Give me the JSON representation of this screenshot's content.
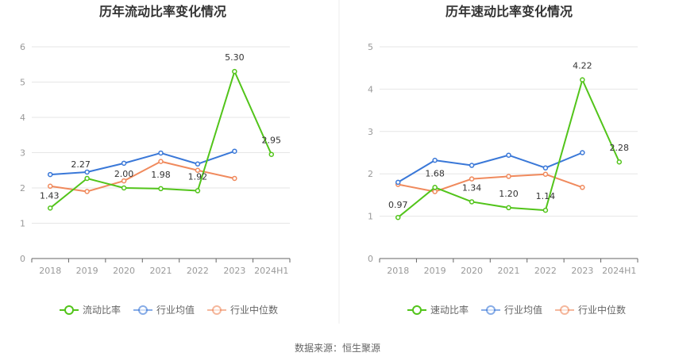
{
  "source": "数据来源：恒生聚源",
  "chart_data": [
    {
      "type": "line",
      "title": "历年流动比率变化情况",
      "categories": [
        "2018",
        "2019",
        "2020",
        "2021",
        "2022",
        "2023",
        "2024H1"
      ],
      "ylim": [
        0,
        6
      ],
      "yticks": [
        0,
        1,
        2,
        3,
        4,
        5,
        6
      ],
      "grid": true,
      "legend": "bottom",
      "series": [
        {
          "name": "流动比率",
          "color": "#52c41a",
          "values": [
            1.43,
            2.27,
            2.0,
            1.98,
            1.92,
            5.3,
            2.95
          ],
          "labels": [
            "1.43",
            "2.27",
            "2.00",
            "1.98",
            "1.92",
            "5.30",
            "2.95"
          ]
        },
        {
          "name": "行业均值",
          "color": "#3a78d8",
          "values": [
            2.38,
            2.45,
            2.7,
            2.99,
            2.68,
            3.04,
            null
          ]
        },
        {
          "name": "行业中位数",
          "color": "#f08a5d",
          "values": [
            2.05,
            1.9,
            2.2,
            2.75,
            2.5,
            2.27,
            null
          ]
        }
      ]
    },
    {
      "type": "line",
      "title": "历年速动比率变化情况",
      "categories": [
        "2018",
        "2019",
        "2020",
        "2021",
        "2022",
        "2023",
        "2024H1"
      ],
      "ylim": [
        0,
        5
      ],
      "yticks": [
        0,
        1,
        2,
        3,
        4,
        5
      ],
      "grid": true,
      "legend": "bottom",
      "series": [
        {
          "name": "速动比率",
          "color": "#52c41a",
          "values": [
            0.97,
            1.68,
            1.34,
            1.2,
            1.14,
            4.22,
            2.28
          ],
          "labels": [
            "0.97",
            "1.68",
            "1.34",
            "1.20",
            "1.14",
            "4.22",
            "2.28"
          ]
        },
        {
          "name": "行业均值",
          "color": "#3a78d8",
          "values": [
            1.8,
            2.32,
            2.2,
            2.44,
            2.14,
            2.5,
            null
          ]
        },
        {
          "name": "行业中位数",
          "color": "#f08a5d",
          "values": [
            1.75,
            1.58,
            1.88,
            1.94,
            1.99,
            1.68,
            null
          ]
        }
      ]
    }
  ]
}
